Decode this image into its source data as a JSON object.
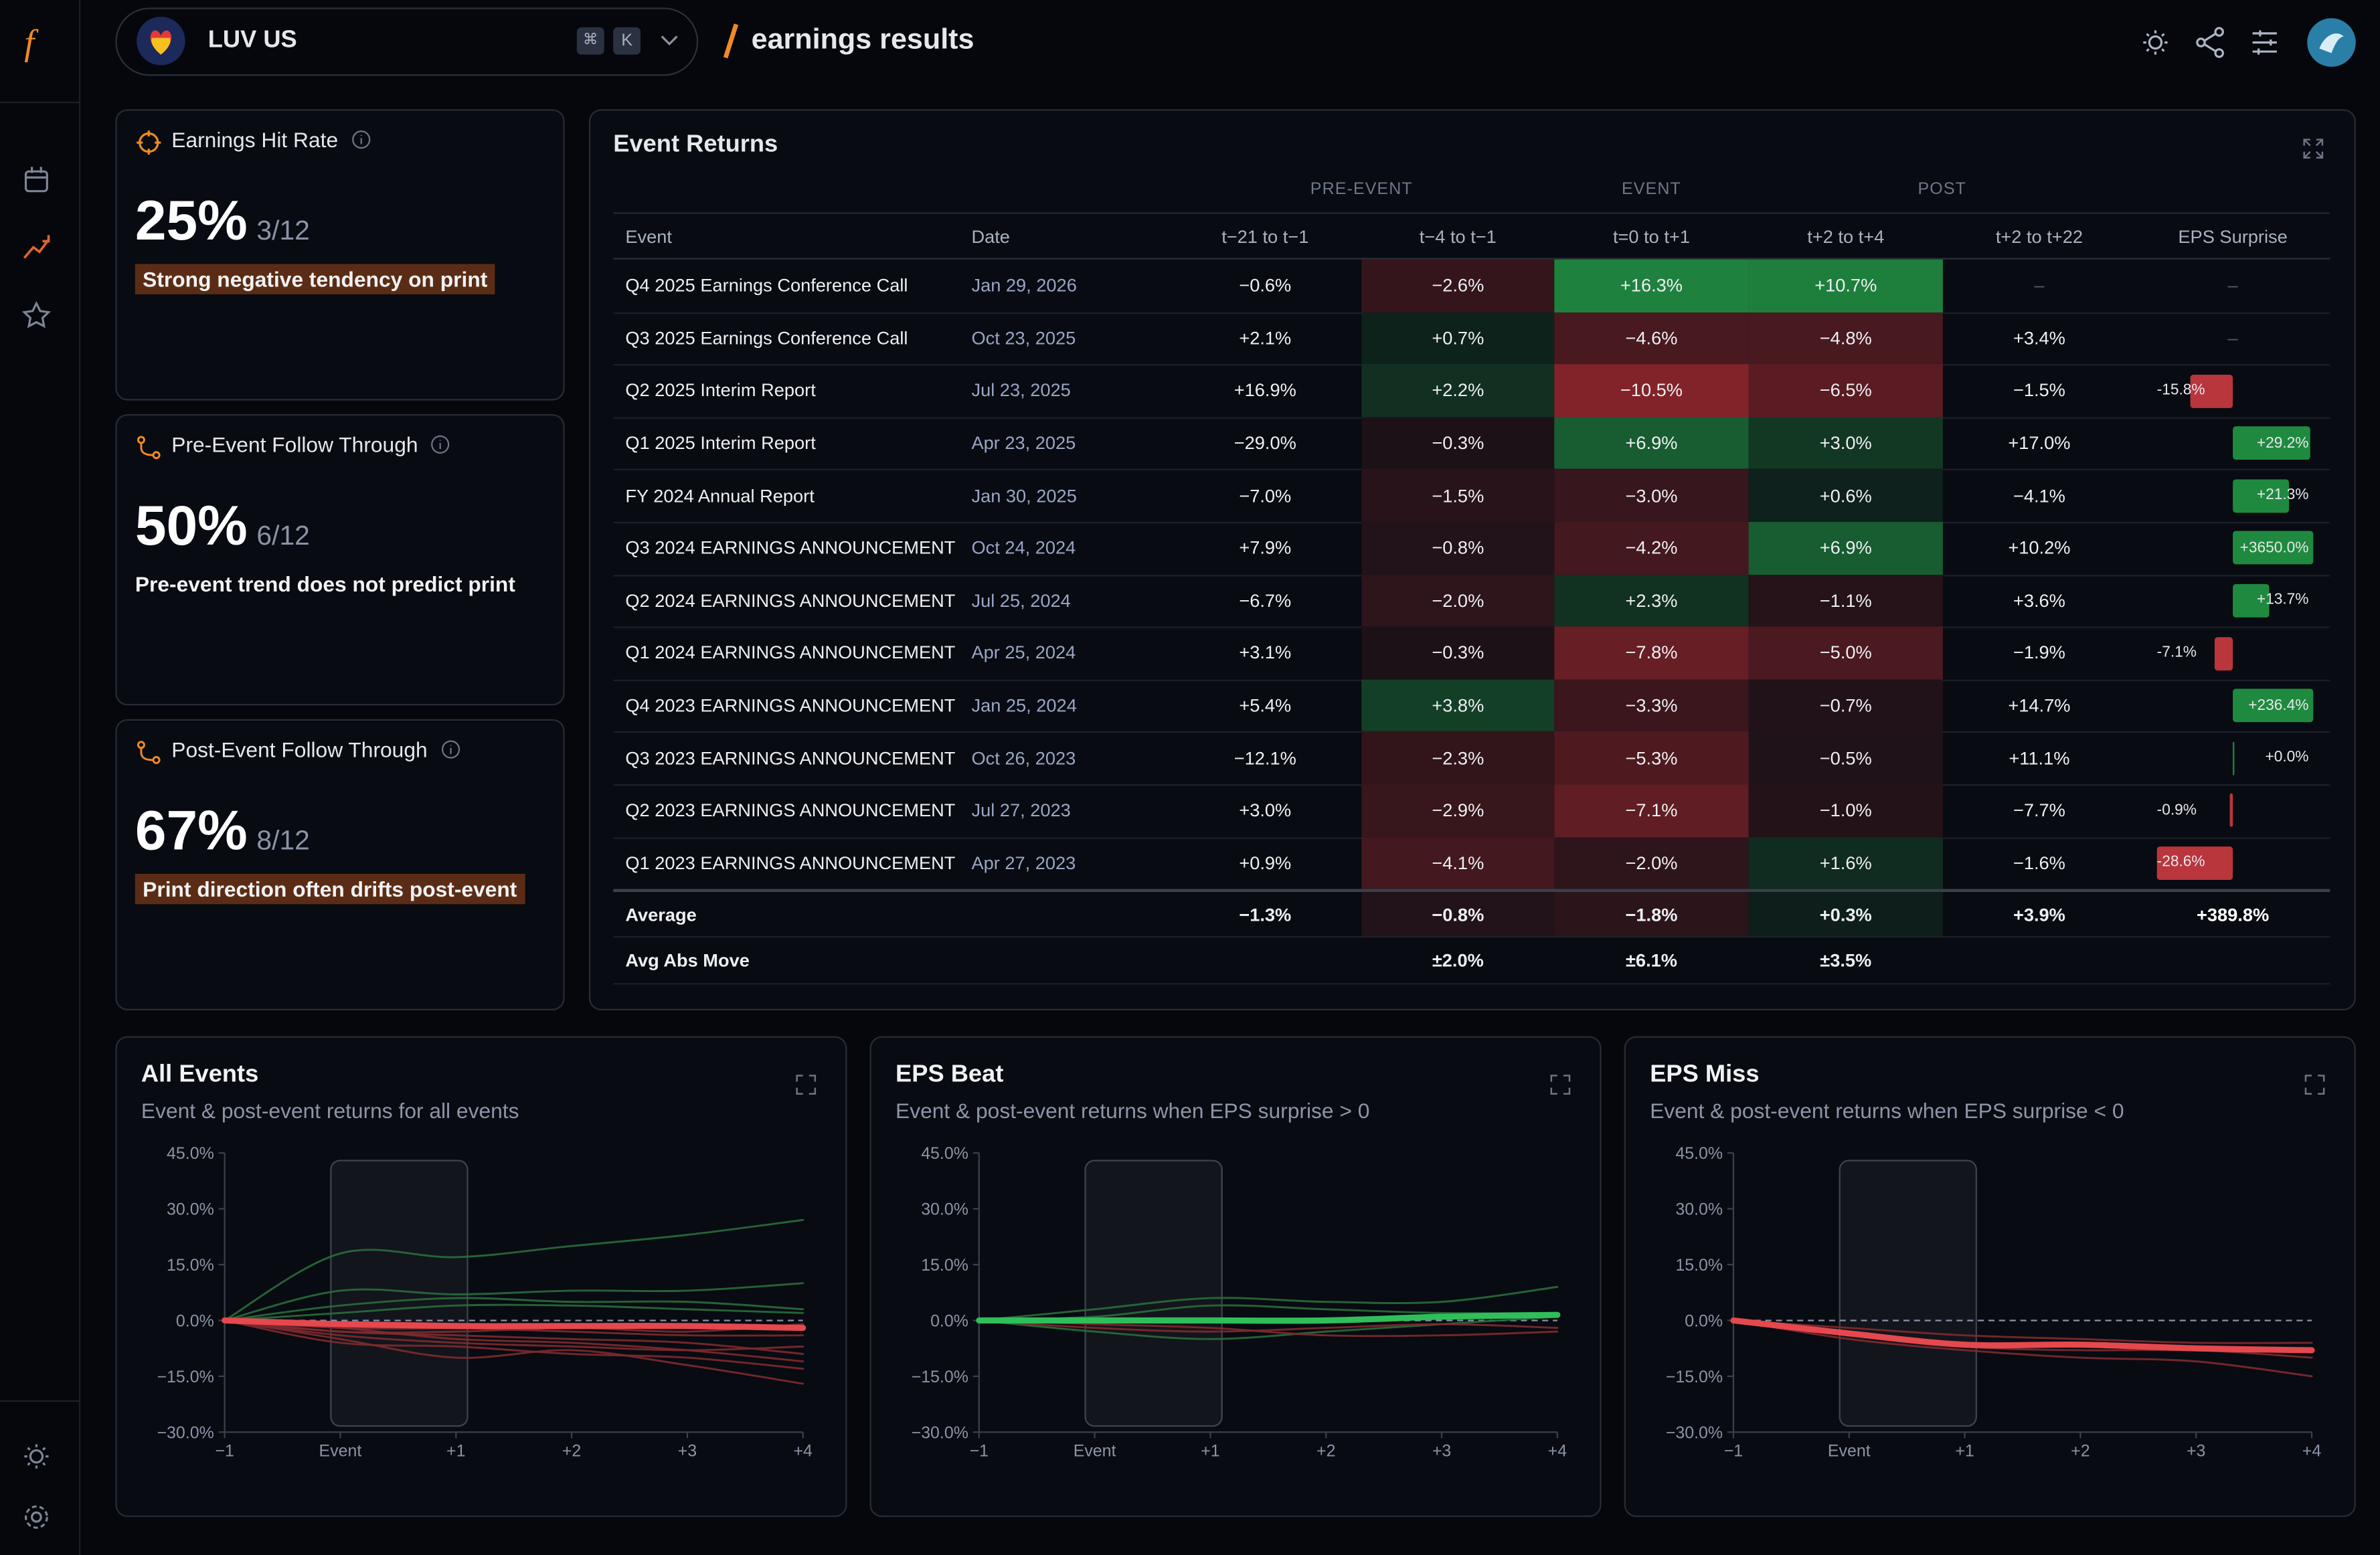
{
  "header": {
    "logo": "f",
    "ticker": "LUV US",
    "kbd": [
      "⌘",
      "K"
    ],
    "page_title": "earnings results"
  },
  "cards": [
    {
      "title": "Earnings Hit Rate",
      "value": "25%",
      "ratio": "3/12",
      "note": "Strong negative tendency on print"
    },
    {
      "title": "Pre-Event Follow Through",
      "value": "50%",
      "ratio": "6/12",
      "note": "Pre-event trend does not predict print"
    },
    {
      "title": "Post-Event Follow Through",
      "value": "67%",
      "ratio": "8/12",
      "note": "Print direction often drifts post-event"
    }
  ],
  "event_returns": {
    "title": "Event Returns",
    "groups": [
      "PRE-EVENT",
      "EVENT",
      "POST"
    ],
    "columns": [
      "Event",
      "Date",
      "t−21 to t−1",
      "t−4 to t−1",
      "t=0 to t+1",
      "t+2 to t+4",
      "t+2 to t+22",
      "EPS Surprise"
    ],
    "rows": [
      [
        "Q4 2025 Earnings Conference Call",
        "Jan 29, 2026",
        "−0.6%",
        "−2.6%",
        "+16.3%",
        "+10.7%",
        "–",
        "–"
      ],
      [
        "Q3 2025 Earnings Conference Call",
        "Oct 23, 2025",
        "+2.1%",
        "+0.7%",
        "−4.6%",
        "−4.8%",
        "+3.4%",
        "–"
      ],
      [
        "Q2 2025 Interim Report",
        "Jul 23, 2025",
        "+16.9%",
        "+2.2%",
        "−10.5%",
        "−6.5%",
        "−1.5%",
        "-15.8%"
      ],
      [
        "Q1 2025 Interim Report",
        "Apr 23, 2025",
        "−29.0%",
        "−0.3%",
        "+6.9%",
        "+3.0%",
        "+17.0%",
        "+29.2%"
      ],
      [
        "FY 2024 Annual Report",
        "Jan 30, 2025",
        "−7.0%",
        "−1.5%",
        "−3.0%",
        "+0.6%",
        "−4.1%",
        "+21.3%"
      ],
      [
        "Q3 2024 EARNINGS ANNOUNCEMENT",
        "Oct 24, 2024",
        "+7.9%",
        "−0.8%",
        "−4.2%",
        "+6.9%",
        "+10.2%",
        "+3650.0%"
      ],
      [
        "Q2 2024 EARNINGS ANNOUNCEMENT",
        "Jul 25, 2024",
        "−6.7%",
        "−2.0%",
        "+2.3%",
        "−1.1%",
        "+3.6%",
        "+13.7%"
      ],
      [
        "Q1 2024 EARNINGS ANNOUNCEMENT",
        "Apr 25, 2024",
        "+3.1%",
        "−0.3%",
        "−7.8%",
        "−5.0%",
        "−1.9%",
        "-7.1%"
      ],
      [
        "Q4 2023 EARNINGS ANNOUNCEMENT",
        "Jan 25, 2024",
        "+5.4%",
        "+3.8%",
        "−3.3%",
        "−0.7%",
        "+14.7%",
        "+236.4%"
      ],
      [
        "Q3 2023 EARNINGS ANNOUNCEMENT",
        "Oct 26, 2023",
        "−12.1%",
        "−2.3%",
        "−5.3%",
        "−0.5%",
        "+11.1%",
        "+0.0%"
      ],
      [
        "Q2 2023 EARNINGS ANNOUNCEMENT",
        "Jul 27, 2023",
        "+3.0%",
        "−2.9%",
        "−7.1%",
        "−1.0%",
        "−7.7%",
        "-0.9%"
      ],
      [
        "Q1 2023 EARNINGS ANNOUNCEMENT",
        "Apr 27, 2023",
        "+0.9%",
        "−4.1%",
        "−2.0%",
        "+1.6%",
        "−1.6%",
        "-28.6%"
      ]
    ],
    "summary": [
      [
        "Average",
        null,
        "−1.3%",
        "−0.8%",
        "−1.8%",
        "+0.3%",
        "+3.9%",
        "+389.8%"
      ],
      [
        "Avg Abs Move",
        null,
        null,
        "±2.0%",
        "±6.1%",
        "±3.5%",
        null,
        null
      ]
    ]
  },
  "chart_data": [
    {
      "type": "line",
      "title": "All Events",
      "subtitle": "Event & post-event returns for all events",
      "x": [
        "−1",
        "Event",
        "+1",
        "+2",
        "+3",
        "+4"
      ],
      "ylim": [
        -30,
        45
      ],
      "yticks": [
        {
          "value": 45,
          "label": "45.0%"
        },
        {
          "value": 30,
          "label": "30.0%"
        },
        {
          "value": 15,
          "label": "15.0%"
        },
        {
          "value": 0,
          "label": "0.0%"
        },
        {
          "value": -15,
          "label": "−15.0%"
        },
        {
          "value": -30,
          "label": "−30.0%"
        }
      ],
      "series": [
        {
          "color": "#2a6b3d",
          "values": [
            0,
            18,
            17,
            20,
            23,
            27
          ]
        },
        {
          "color": "#2a6b3d",
          "values": [
            0,
            8,
            7,
            8,
            8,
            10
          ]
        },
        {
          "color": "#2a6b3d",
          "values": [
            0,
            4,
            6,
            5,
            5,
            3
          ]
        },
        {
          "color": "#2a6b3d",
          "values": [
            0,
            2,
            4,
            4,
            3,
            2
          ]
        },
        {
          "color": "#7e2a2f",
          "values": [
            0,
            -3,
            -4,
            -5,
            -6,
            -9
          ]
        },
        {
          "color": "#7e2a2f",
          "values": [
            0,
            -5,
            -10,
            -8,
            -12,
            -17
          ]
        },
        {
          "color": "#7e2a2f",
          "values": [
            0,
            -2,
            -5,
            -6,
            -8,
            -11
          ]
        },
        {
          "color": "#7e2a2f",
          "values": [
            0,
            -4,
            -6,
            -7,
            -8,
            -7
          ]
        },
        {
          "color": "#7e2a2f",
          "values": [
            0,
            -1,
            -2,
            -3,
            -4,
            -4
          ]
        },
        {
          "color": "#7e2a2f",
          "values": [
            0,
            -6,
            -7,
            -9,
            -10,
            -13
          ]
        },
        {
          "color": "#7e2a2f",
          "values": [
            0,
            -2,
            -2,
            -1,
            -2,
            -2
          ]
        },
        {
          "color": "#7e2a2f",
          "values": [
            0,
            -3,
            -3,
            -2,
            -3,
            -1
          ]
        },
        {
          "color": "#e5484d",
          "values": [
            0,
            -1,
            -1.5,
            -1.5,
            -1.5,
            -2
          ]
        }
      ]
    },
    {
      "type": "line",
      "title": "EPS Beat",
      "subtitle": "Event & post-event returns when EPS surprise > 0",
      "x": [
        "−1",
        "Event",
        "+1",
        "+2",
        "+3",
        "+4"
      ],
      "ylim": [
        -30,
        45
      ],
      "yticks": [
        {
          "value": 45,
          "label": "45.0%"
        },
        {
          "value": 30,
          "label": "30.0%"
        },
        {
          "value": 15,
          "label": "15.0%"
        },
        {
          "value": 0,
          "label": "0.0%"
        },
        {
          "value": -15,
          "label": "−15.0%"
        },
        {
          "value": -30,
          "label": "−30.0%"
        }
      ],
      "series": [
        {
          "color": "#2a6b3d",
          "values": [
            0,
            3,
            6,
            5,
            5,
            9
          ]
        },
        {
          "color": "#2a6b3d",
          "values": [
            0,
            1,
            4,
            3,
            2,
            2
          ]
        },
        {
          "color": "#2a6b3d",
          "values": [
            0,
            -3,
            -5,
            -3,
            -1,
            1
          ]
        },
        {
          "color": "#7e2a2f",
          "values": [
            0,
            -2,
            -3,
            -2,
            -1,
            -2
          ]
        },
        {
          "color": "#7e2a2f",
          "values": [
            0,
            -1,
            -2,
            -4,
            -4,
            -3
          ]
        },
        {
          "color": "#2fbf5a",
          "values": [
            0,
            0,
            0,
            0,
            1,
            1.5
          ]
        }
      ]
    },
    {
      "type": "line",
      "title": "EPS Miss",
      "subtitle": "Event & post-event returns when EPS surprise < 0",
      "x": [
        "−1",
        "Event",
        "+1",
        "+2",
        "+3",
        "+4"
      ],
      "ylim": [
        -30,
        45
      ],
      "yticks": [
        {
          "value": 45,
          "label": "45.0%"
        },
        {
          "value": 30,
          "label": "30.0%"
        },
        {
          "value": 15,
          "label": "15.0%"
        },
        {
          "value": 0,
          "label": "0.0%"
        },
        {
          "value": -15,
          "label": "−15.0%"
        },
        {
          "value": -30,
          "label": "−30.0%"
        }
      ],
      "series": [
        {
          "color": "#7e2a2f",
          "values": [
            0,
            -3,
            -7,
            -8,
            -8,
            -10
          ]
        },
        {
          "color": "#7e2a2f",
          "values": [
            0,
            -5,
            -8,
            -10,
            -11,
            -15
          ]
        },
        {
          "color": "#7e2a2f",
          "values": [
            0,
            -2,
            -4,
            -5,
            -6,
            -6
          ]
        },
        {
          "color": "#e5484d",
          "values": [
            0,
            -3.5,
            -6.5,
            -6.5,
            -7.5,
            -8
          ]
        }
      ]
    }
  ]
}
